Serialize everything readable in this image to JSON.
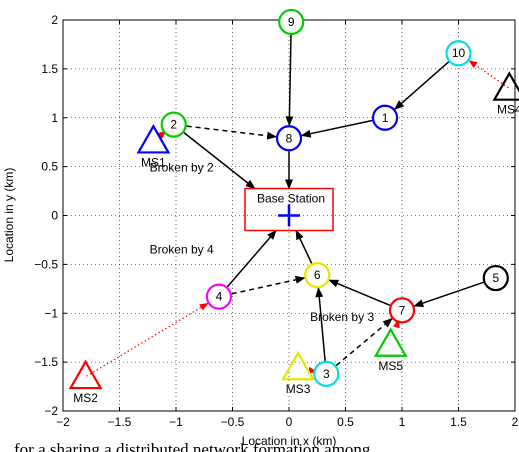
{
  "chart_data": {
    "type": "scatter",
    "title": "",
    "xlabel": "Location in x (km)",
    "ylabel": "Location in y (km)",
    "xlim": [
      -2,
      2
    ],
    "ylim": [
      -2,
      2
    ],
    "xticks": [
      -2,
      -1.5,
      -1,
      -0.5,
      0,
      0.5,
      1,
      1.5,
      2
    ],
    "xtick_labels": [
      "−2",
      "−1.5",
      "−1",
      "−0.5",
      "0",
      "0.5",
      "1",
      "1.5",
      "2"
    ],
    "yticks": [
      2,
      1.5,
      1,
      0.5,
      0,
      -0.5,
      -1,
      -1.5,
      -2
    ],
    "ytick_labels": [
      "2",
      "1.5",
      "1",
      "0.5",
      "0",
      "−0.5",
      "−1",
      "−1.5",
      "−2"
    ],
    "grid": true,
    "base_station": {
      "label": "Base Station",
      "x": 0,
      "y": 0,
      "marker": "plus",
      "color": "#0000ff",
      "box_color": "#ff0000"
    },
    "relay_nodes": [
      {
        "label": "1",
        "x": 0.85,
        "y": 1.0,
        "color": "#0000ff"
      },
      {
        "label": "2",
        "x": -1.02,
        "y": 0.93,
        "color": "#00cc00"
      },
      {
        "label": "3",
        "x": 0.33,
        "y": -1.62,
        "color": "#00e0e0"
      },
      {
        "label": "4",
        "x": -0.62,
        "y": -0.83,
        "color": "#ff00ff"
      },
      {
        "label": "5",
        "x": 1.83,
        "y": -0.64,
        "color": "#000000"
      },
      {
        "label": "6",
        "x": 0.25,
        "y": -0.61,
        "color": "#e6e600"
      },
      {
        "label": "7",
        "x": 1.0,
        "y": -0.97,
        "color": "#ff0000"
      },
      {
        "label": "8",
        "x": 0.0,
        "y": 0.79,
        "color": "#0000ff"
      },
      {
        "label": "9",
        "x": 0.02,
        "y": 1.98,
        "color": "#00cc00"
      },
      {
        "label": "10",
        "x": 1.5,
        "y": 1.66,
        "color": "#00e0e0"
      }
    ],
    "mobile_stations": [
      {
        "label": "MS1",
        "x": -1.2,
        "y": 0.76,
        "color": "#0000ff"
      },
      {
        "label": "MS2",
        "x": -1.8,
        "y": -1.65,
        "color": "#ff0000"
      },
      {
        "label": "MS3",
        "x": 0.08,
        "y": -1.56,
        "color": "#e6e600"
      },
      {
        "label": "MS4",
        "x": 1.95,
        "y": 1.3,
        "color": "#000000"
      },
      {
        "label": "MS5",
        "x": 0.9,
        "y": -1.32,
        "color": "#00cc00"
      }
    ],
    "links_solid": [
      [
        "9",
        "8"
      ],
      [
        "1",
        "8"
      ],
      [
        "10",
        "1"
      ],
      [
        "8",
        "BS"
      ],
      [
        "2",
        "BS"
      ],
      [
        "4",
        "BS"
      ],
      [
        "6",
        "BS"
      ],
      [
        "3",
        "6"
      ],
      [
        "7",
        "6"
      ],
      [
        "5",
        "7"
      ]
    ],
    "links_dashed": [
      [
        "2",
        "8"
      ],
      [
        "4",
        "6"
      ],
      [
        "3",
        "7"
      ]
    ],
    "links_access_dotted": [
      [
        "MS4",
        "10"
      ],
      [
        "MS2",
        "4"
      ]
    ],
    "annotations": [
      "Broken by 2",
      "Broken by 4",
      "Broken by 3"
    ]
  },
  "caption_fragment": "for a sharing a distributed network formation among"
}
